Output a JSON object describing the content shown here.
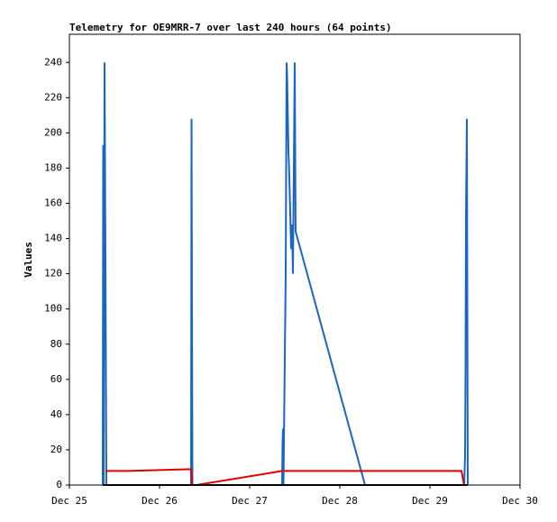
{
  "chart_data": {
    "type": "line",
    "title": "Telemetry for OE9MRR-7 over last 240 hours (64 points)",
    "y_label": "Values",
    "xlim": [
      25,
      30
    ],
    "xticks": [
      {
        "value": 25,
        "label": "Dec 25"
      },
      {
        "value": 26,
        "label": "Dec 26"
      },
      {
        "value": 27,
        "label": "Dec 27"
      },
      {
        "value": 28,
        "label": "Dec 28"
      },
      {
        "value": 29,
        "label": "Dec 29"
      },
      {
        "value": 30,
        "label": "Dec 30"
      }
    ],
    "ylim": [
      0,
      256
    ],
    "yticks": [
      0,
      20,
      40,
      60,
      80,
      100,
      120,
      140,
      160,
      180,
      200,
      220,
      240
    ],
    "grid": false,
    "series": [
      {
        "color": "#1a66c0",
        "x": [
          25.37,
          25.375,
          25.38,
          25.39,
          25.4,
          25.41,
          26.35,
          26.355,
          26.36,
          26.365,
          27.36,
          27.365,
          27.37,
          27.375,
          27.4,
          27.41,
          27.415,
          27.42,
          27.43,
          27.44,
          27.46,
          27.47,
          27.48,
          27.5,
          27.51,
          28.28,
          29.38,
          29.39,
          29.395,
          29.4,
          29.41,
          29.42
        ],
        "values": [
          0,
          193,
          0,
          240,
          128,
          0,
          0,
          208,
          104,
          0,
          0,
          24,
          32,
          0,
          120,
          240,
          233,
          220,
          190,
          175,
          134,
          148,
          120,
          240,
          144,
          0,
          0,
          16,
          64,
          152,
          208,
          0
        ]
      },
      {
        "color": "#e00000",
        "x": [
          25.4,
          25.65,
          26.35,
          26.36,
          26.41,
          27.36,
          29.35,
          29.38
        ],
        "values": [
          8,
          8,
          9,
          0,
          0,
          8,
          8,
          0
        ]
      },
      {
        "color": "#000000",
        "x": [
          25.37,
          29.42
        ],
        "values": [
          0,
          0
        ]
      }
    ]
  }
}
